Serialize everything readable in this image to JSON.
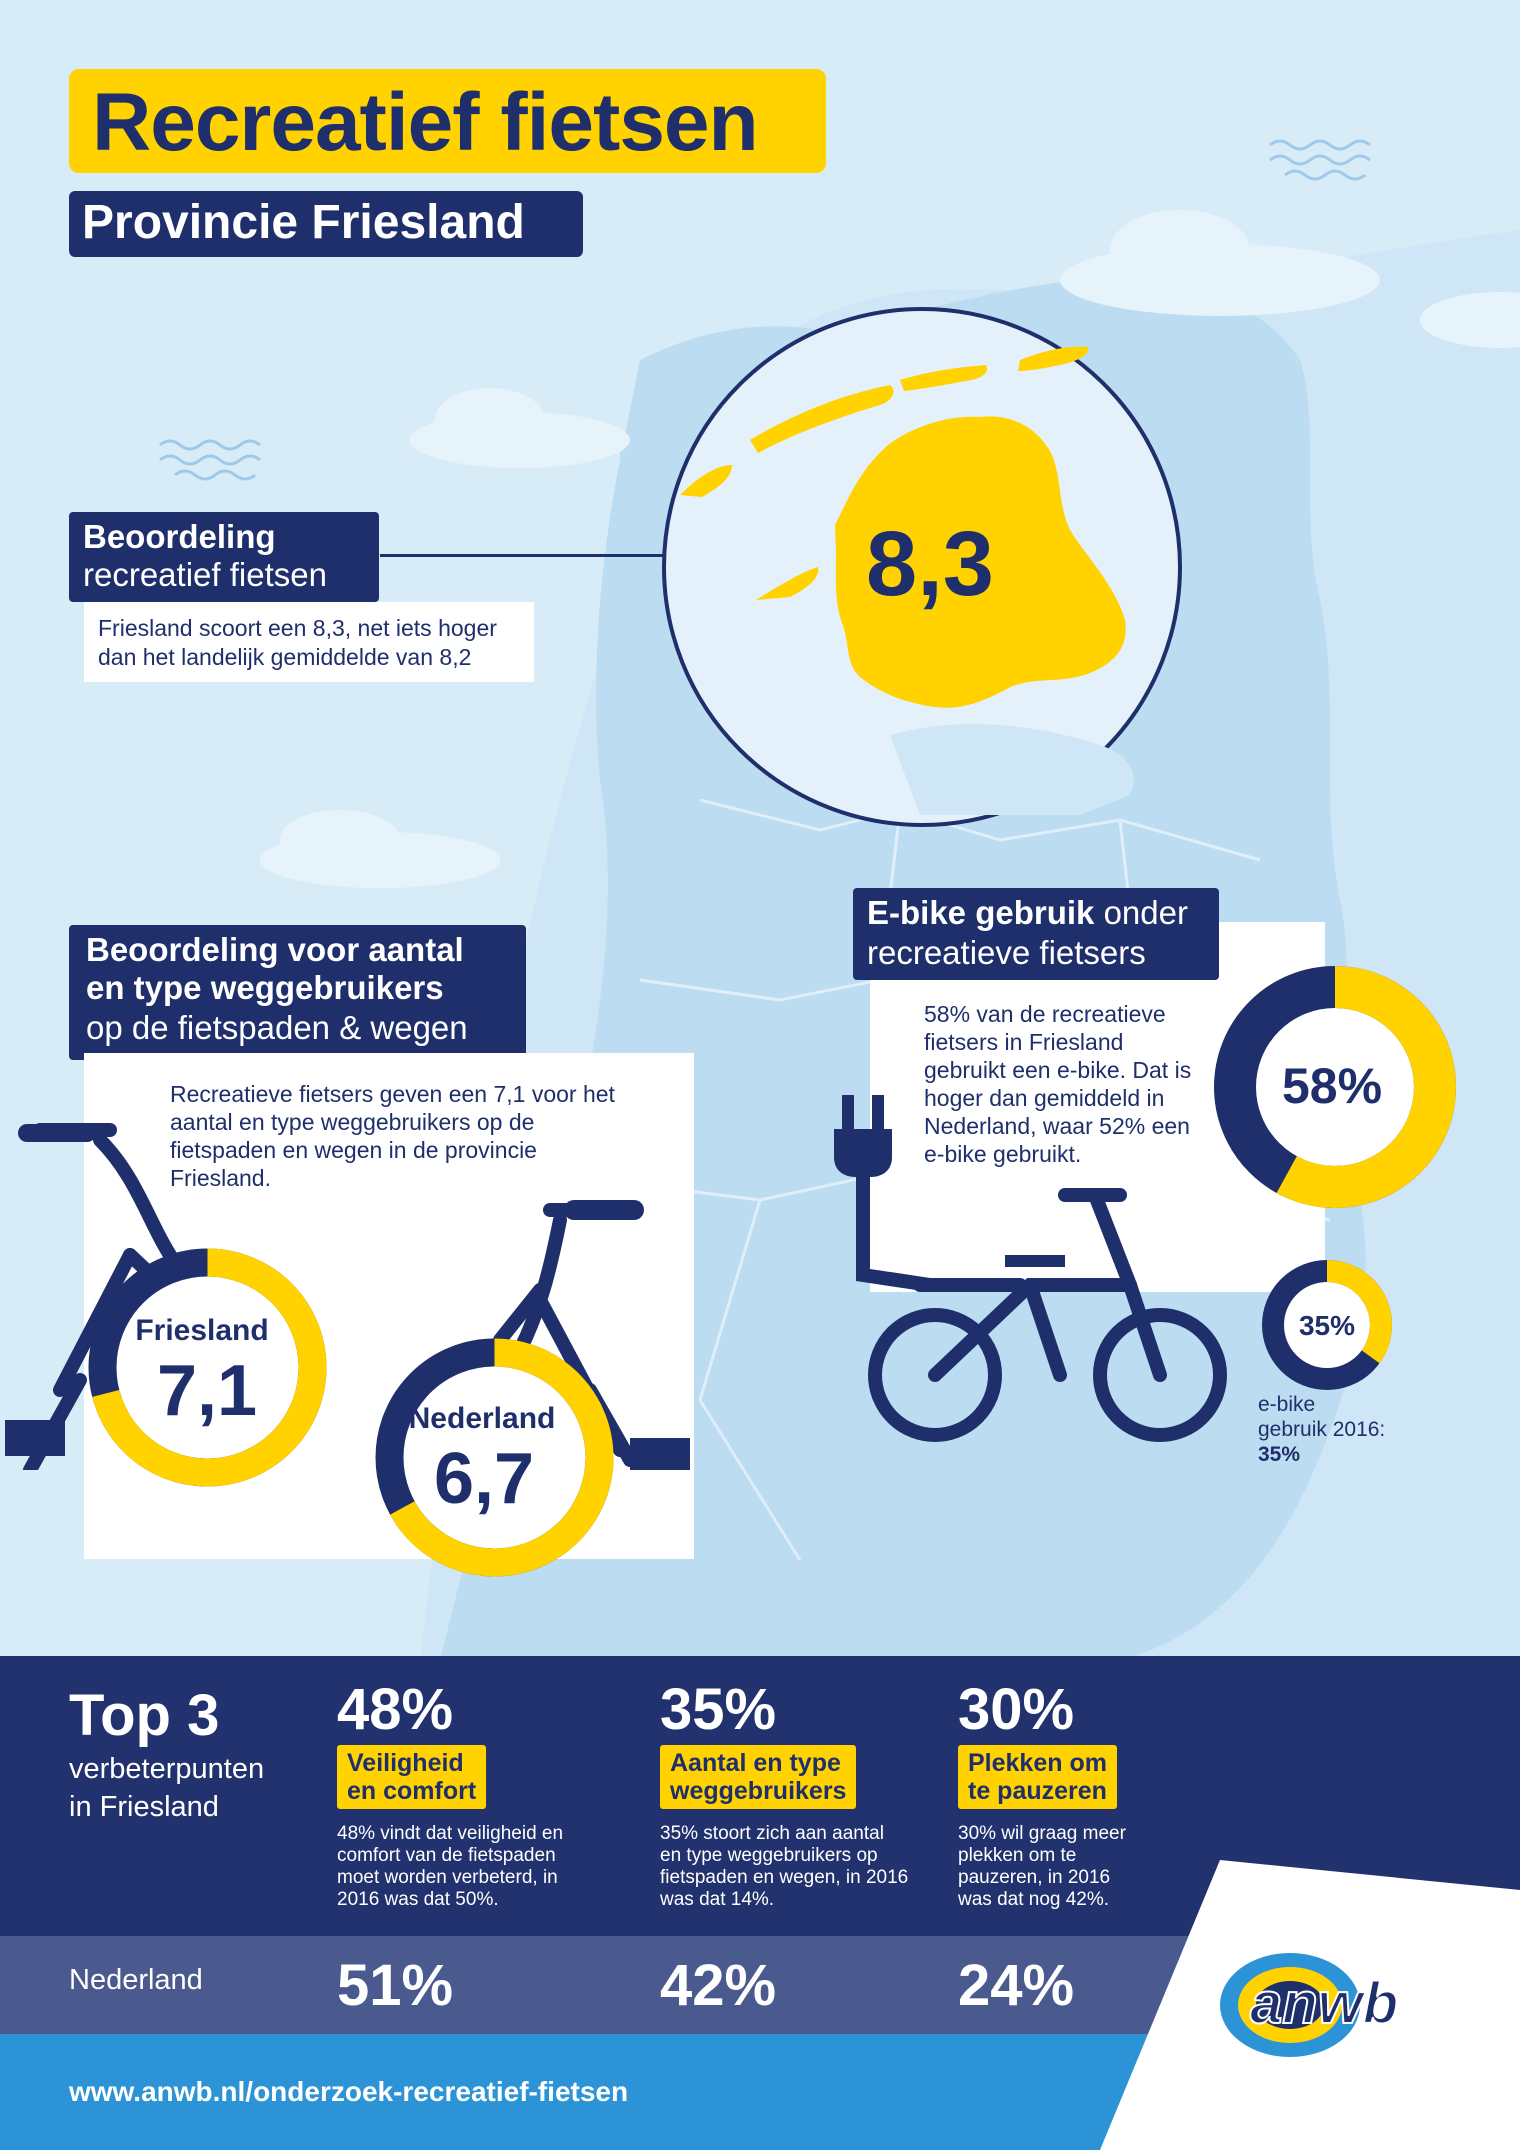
{
  "title": "Recreatief fietsen",
  "subtitle": "Provincie Friesland",
  "rating": {
    "label_bold": "Beoordeling",
    "label_light": "recreatief fietsen",
    "description": "Friesland scoort een 8,3, net iets hoger dan het landelijk gemiddelde van 8,2",
    "score": "8,3"
  },
  "road_users": {
    "label_bold_line1": "Beoordeling voor aantal",
    "label_bold_line2": "en type weggebruikers",
    "label_light": "op de fietspaden & wegen",
    "description": "Recreatieve fietsers geven een 7,1 voor het aantal en type weggebruikers op de fietspaden en wegen in de provincie Friesland.",
    "friesland_label": "Friesland",
    "friesland_score": "7,1",
    "friesland_fraction": 0.71,
    "nederland_label": "Nederland",
    "nederland_score": "6,7",
    "nederland_fraction": 0.67
  },
  "ebike": {
    "label_bold": "E-bike gebruik",
    "label_light_1": "onder",
    "label_light_2": "recreatieve fietsers",
    "description": "58% van de recreatieve fietsers in Friesland gebruikt een e-bike. Dat is hoger dan gemiddeld in Nederland, waar 52% een e-bike gebruikt.",
    "big_pct": "58%",
    "big_fraction": 0.58,
    "small_pct": "35%",
    "small_fraction": 0.35,
    "small_caption_1": "e-bike",
    "small_caption_2": "gebruik 2016:",
    "small_caption_3": "35%"
  },
  "top3": {
    "title": "Top 3",
    "subtitle_1": "verbeterpunten",
    "subtitle_2": "in Friesland",
    "items": [
      {
        "pct": "48%",
        "tag_1": "Veiligheid",
        "tag_2": "en comfort",
        "text": "48% vindt dat veiligheid en comfort van de fietspaden moet worden verbeterd, in 2016 was dat 50%.",
        "nl": "51%"
      },
      {
        "pct": "35%",
        "tag_1": "Aantal en type",
        "tag_2": "weggebruikers",
        "text": "35% stoort zich aan aantal en type weggebruikers op fietspaden en wegen, in 2016 was dat 14%.",
        "nl": "42%"
      },
      {
        "pct": "30%",
        "tag_1": "Plekken om",
        "tag_2": "te pauzeren",
        "text": "30% wil graag meer plekken om te pauzeren, in 2016 was dat nog 42%.",
        "nl": "24%"
      }
    ],
    "nederland_label": "Nederland"
  },
  "footer": {
    "url": "www.anwb.nl/onderzoek-recreatief-fietsen",
    "logo_text": "anwb"
  },
  "colors": {
    "navy": "#1f2f6b",
    "yellow": "#ffd200",
    "sky": "#cfe6f6",
    "blue": "#2c94d6"
  }
}
